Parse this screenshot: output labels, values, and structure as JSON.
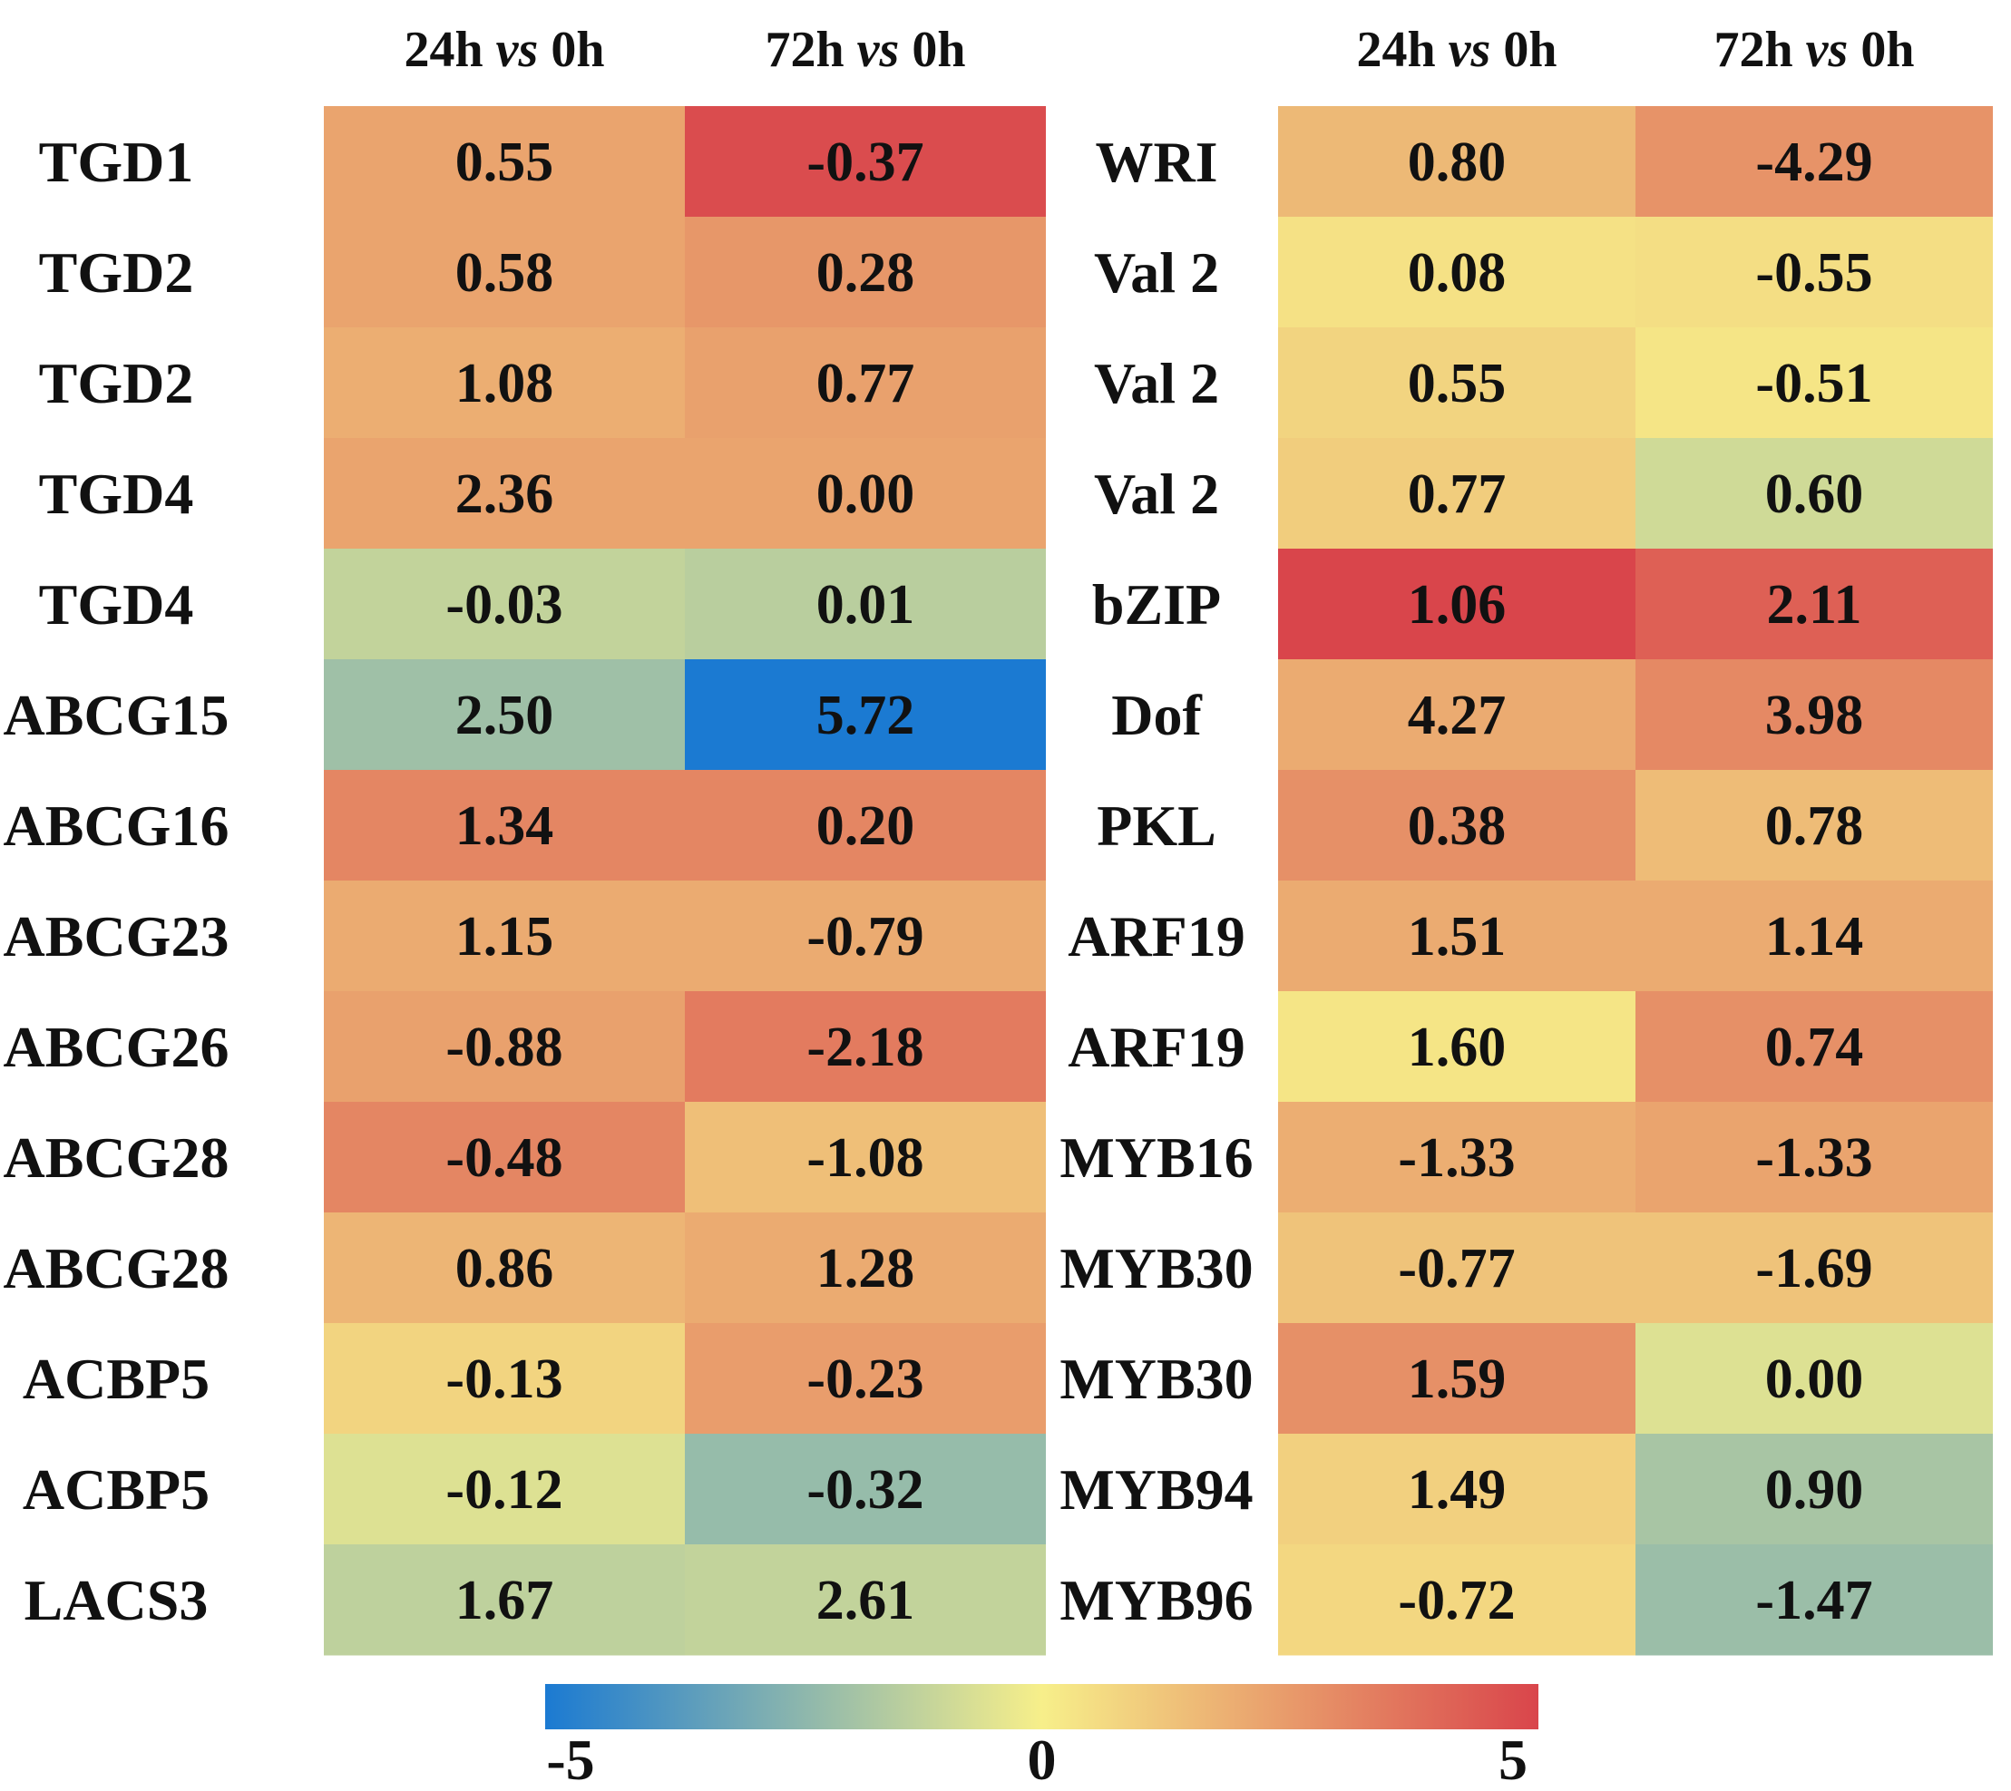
{
  "chart_data": {
    "type": "heatmap",
    "title": "",
    "colorbar": {
      "min": -5,
      "max": 5,
      "ticks": [
        "-5",
        "0",
        "5"
      ],
      "colors": [
        "#1b7ad2",
        "#f7ef8a",
        "#d9454b"
      ]
    },
    "panels": [
      {
        "columns": [
          "24h vs 0h",
          "72h vs 0h"
        ],
        "rows": [
          {
            "gene": "TGD1",
            "values": [
              "0.55",
              "-0.37"
            ],
            "scores": [
              2.2,
              4.8
            ]
          },
          {
            "gene": "TGD2",
            "values": [
              "0.58",
              "0.28"
            ],
            "scores": [
              2.2,
              2.6
            ]
          },
          {
            "gene": "TGD2",
            "values": [
              "1.08",
              "0.77"
            ],
            "scores": [
              1.9,
              2.3
            ]
          },
          {
            "gene": "TGD4",
            "values": [
              "2.36",
              "0.00"
            ],
            "scores": [
              2.2,
              2.2
            ]
          },
          {
            "gene": "TGD4",
            "values": [
              "-0.03",
              "0.01"
            ],
            "scores": [
              -1.2,
              -1.4
            ]
          },
          {
            "gene": "ABCG15",
            "values": [
              "2.50",
              "5.72"
            ],
            "scores": [
              -2.0,
              -5.0
            ]
          },
          {
            "gene": "ABCG16",
            "values": [
              "1.34",
              "0.20"
            ],
            "scores": [
              3.1,
              3.1
            ]
          },
          {
            "gene": "ABCG23",
            "values": [
              "1.15",
              "-0.79"
            ],
            "scores": [
              2.0,
              2.0
            ]
          },
          {
            "gene": "ABCG26",
            "values": [
              "-0.88",
              "-2.18"
            ],
            "scores": [
              2.3,
              3.4
            ]
          },
          {
            "gene": "ABCG28",
            "values": [
              "-0.48",
              "-1.08"
            ],
            "scores": [
              3.1,
              1.4
            ]
          },
          {
            "gene": "ABCG28",
            "values": [
              "0.86",
              "1.28"
            ],
            "scores": [
              1.7,
              2.0
            ]
          },
          {
            "gene": "ACBP5",
            "values": [
              "-0.13",
              "-0.23"
            ],
            "scores": [
              0.8,
              2.4
            ]
          },
          {
            "gene": "ACBP5",
            "values": [
              "-0.12",
              "-0.32"
            ],
            "scores": [
              -0.6,
              -2.2
            ]
          },
          {
            "gene": "LACS3",
            "values": [
              "1.67",
              "2.61"
            ],
            "scores": [
              -1.3,
              -1.2
            ]
          }
        ]
      },
      {
        "columns": [
          "24h vs 0h",
          "72h vs 0h"
        ],
        "rows": [
          {
            "gene": "WRI",
            "values": [
              "0.80",
              "-4.29"
            ],
            "scores": [
              1.6,
              2.7
            ]
          },
          {
            "gene": "Val 2",
            "values": [
              "0.08",
              "-0.55"
            ],
            "scores": [
              0.4,
              0.5
            ]
          },
          {
            "gene": "Val 2",
            "values": [
              "0.55",
              "-0.51"
            ],
            "scores": [
              0.8,
              0.3
            ]
          },
          {
            "gene": "Val 2",
            "values": [
              "0.77",
              "0.60"
            ],
            "scores": [
              1.0,
              -0.9
            ]
          },
          {
            "gene": "bZIP",
            "values": [
              "1.06",
              "2.11"
            ],
            "scores": [
              5.0,
              4.2
            ]
          },
          {
            "gene": "Dof",
            "values": [
              "4.27",
              "3.98"
            ],
            "scores": [
              2.0,
              3.0
            ]
          },
          {
            "gene": "PKL",
            "values": [
              "0.38",
              "0.78"
            ],
            "scores": [
              2.8,
              1.5
            ]
          },
          {
            "gene": "ARF19",
            "values": [
              "1.51",
              "1.14"
            ],
            "scores": [
              2.0,
              2.0
            ]
          },
          {
            "gene": "ARF19",
            "values": [
              "1.60",
              "0.74"
            ],
            "scores": [
              0.3,
              2.8
            ]
          },
          {
            "gene": "MYB16",
            "values": [
              "-1.33",
              "-1.33"
            ],
            "scores": [
              1.9,
              2.2
            ]
          },
          {
            "gene": "MYB30",
            "values": [
              "-0.77",
              "-1.69"
            ],
            "scores": [
              1.3,
              1.3
            ]
          },
          {
            "gene": "MYB30",
            "values": [
              "1.59",
              "0.00"
            ],
            "scores": [
              2.8,
              -0.6
            ]
          },
          {
            "gene": "MYB94",
            "values": [
              "1.49",
              "0.90"
            ],
            "scores": [
              0.9,
              -1.8
            ]
          },
          {
            "gene": "MYB96",
            "values": [
              "-0.72",
              "-1.47"
            ],
            "scores": [
              0.7,
              -2.1
            ]
          }
        ]
      }
    ]
  }
}
